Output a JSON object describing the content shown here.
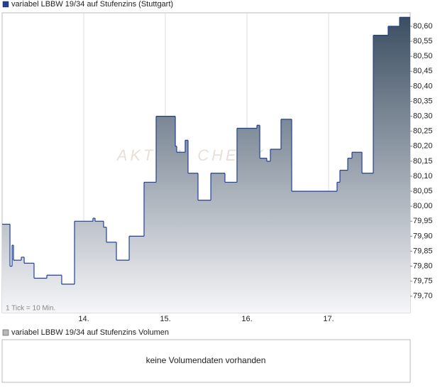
{
  "chart_data": {
    "type": "line",
    "step": true,
    "title": "variabel LBBW 19/34 auf Stufenzins (Stuttgart)",
    "annotation": "1 Tick = 10 Min.",
    "watermark": "AKTIEN CHECK",
    "x": [
      13.0,
      13.096,
      13.122,
      13.139,
      13.235,
      13.27,
      13.391,
      13.548,
      13.73,
      13.887,
      14.113,
      14.139,
      14.243,
      14.278,
      14.4,
      14.557,
      14.739,
      14.887,
      15.122,
      15.139,
      15.243,
      15.278,
      15.4,
      15.557,
      15.73,
      15.878,
      16.122,
      16.157,
      16.243,
      16.287,
      16.417,
      16.548,
      17.104,
      17.139,
      17.235,
      17.287,
      17.409,
      17.548,
      17.73,
      17.87,
      17.913
    ],
    "series": [
      {
        "name": "variabel LBBW 19/34 auf Stufenzins (Stuttgart)",
        "color": "#1f3f9a",
        "values": [
          79.94,
          79.8,
          79.87,
          79.82,
          79.83,
          79.81,
          79.76,
          79.77,
          79.74,
          79.95,
          79.96,
          79.95,
          79.93,
          79.88,
          79.82,
          79.9,
          80.08,
          80.3,
          80.2,
          80.18,
          80.22,
          80.11,
          80.02,
          80.11,
          80.08,
          80.26,
          80.27,
          80.16,
          80.15,
          80.19,
          80.29,
          80.05,
          80.08,
          80.12,
          80.16,
          80.18,
          80.11,
          80.57,
          80.6,
          80.63,
          80.63
        ]
      }
    ],
    "xlim": [
      13,
      18
    ],
    "xticks": [
      {
        "value": 14,
        "label": "14."
      },
      {
        "value": 15,
        "label": "15."
      },
      {
        "value": 16,
        "label": "16."
      },
      {
        "value": 17,
        "label": "17."
      }
    ],
    "ylim": [
      79.645,
      80.645
    ],
    "yticks": [
      {
        "value": 79.7,
        "label": "79,70"
      },
      {
        "value": 79.75,
        "label": "79,75"
      },
      {
        "value": 79.8,
        "label": "79,80"
      },
      {
        "value": 79.85,
        "label": "79,85"
      },
      {
        "value": 79.9,
        "label": "79,90"
      },
      {
        "value": 79.95,
        "label": "79,95"
      },
      {
        "value": 80.0,
        "label": "80,00"
      },
      {
        "value": 80.05,
        "label": "80,05"
      },
      {
        "value": 80.1,
        "label": "80,10"
      },
      {
        "value": 80.15,
        "label": "80,15"
      },
      {
        "value": 80.2,
        "label": "80,20"
      },
      {
        "value": 80.25,
        "label": "80,25"
      },
      {
        "value": 80.3,
        "label": "80,30"
      },
      {
        "value": 80.35,
        "label": "80,35"
      },
      {
        "value": 80.4,
        "label": "80,40"
      },
      {
        "value": 80.45,
        "label": "80,45"
      },
      {
        "value": 80.5,
        "label": "80,50"
      },
      {
        "value": 80.55,
        "label": "80,55"
      },
      {
        "value": 80.6,
        "label": "80,60"
      }
    ],
    "grid": "x"
  },
  "volume": {
    "legend": "variabel LBBW 19/34 auf Stufenzins Volumen",
    "color": "#b8b8b8",
    "message": "keine Volumendaten vorhanden"
  }
}
